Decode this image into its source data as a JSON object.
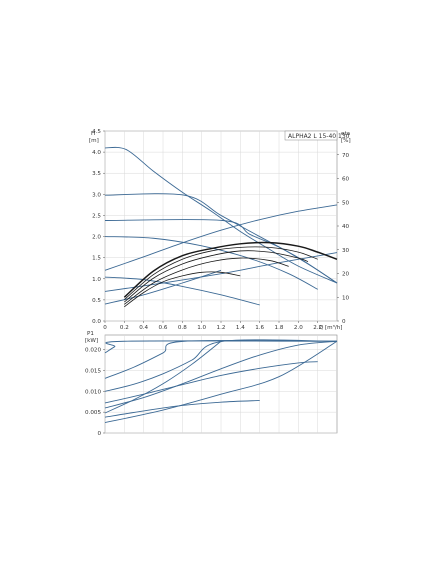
{
  "colors": {
    "curve": "#3d6a95",
    "eta_curve": "#1a1a1a",
    "axis": "#555555",
    "grid": "#d8d8d8",
    "frame": "#888888"
  },
  "legend": "ALPHA2 L 15-40 130",
  "chart_data": [
    {
      "type": "line",
      "title": "",
      "ylabel": "H",
      "yunit": "[m]",
      "y2label": "eta",
      "y2unit": "[%]",
      "xlabel": "Q",
      "xunit": "[m³/h]",
      "xlim": [
        0,
        2.4
      ],
      "ylim": [
        0,
        4.5
      ],
      "y2lim": [
        0,
        80
      ],
      "grid": true,
      "x_ticks": [
        "0",
        "0.2",
        "0.4",
        "0.6",
        "0.8",
        "1.0",
        "1.2",
        "1.4",
        "1.6",
        "1.8",
        "2.0",
        "2.2"
      ],
      "x_tick_values": [
        0,
        0.2,
        0.4,
        0.6,
        0.8,
        1.0,
        1.2,
        1.4,
        1.6,
        1.8,
        2.0,
        2.2
      ],
      "y_ticks": [
        "0.0",
        "0.5",
        "1.0",
        "1.5",
        "2.0",
        "2.5",
        "3.0",
        "3.5",
        "4.0",
        "4.5"
      ],
      "y_tick_values": [
        0,
        0.5,
        1.0,
        1.5,
        2.0,
        2.5,
        3.0,
        3.5,
        4.0,
        4.5
      ],
      "y2_ticks": [
        "0",
        "10",
        "20",
        "30",
        "40",
        "50",
        "60",
        "70"
      ],
      "y2_tick_values": [
        0,
        10,
        20,
        30,
        40,
        50,
        60,
        70
      ],
      "series": [
        {
          "axis": "y",
          "x": [
            0,
            0.22,
            0.5,
            0.8,
            1.1,
            1.4,
            1.7,
            2.0,
            2.4
          ],
          "y": [
            4.1,
            4.06,
            3.55,
            3.05,
            2.6,
            2.12,
            1.7,
            1.3,
            0.9
          ]
        },
        {
          "axis": "y",
          "x": [
            0,
            0.82,
            1.2,
            1.6,
            2.0,
            2.4
          ],
          "y": [
            2.98,
            2.98,
            2.5,
            2.0,
            1.5,
            0.9
          ]
        },
        {
          "axis": "y",
          "x": [
            0,
            1.22,
            1.5,
            1.8,
            2.1,
            2.4
          ],
          "y": [
            2.38,
            2.38,
            2.05,
            1.75,
            1.35,
            0.9
          ]
        },
        {
          "axis": "y",
          "x": [
            0,
            0.5,
            1.0,
            1.5,
            1.9,
            2.2
          ],
          "y": [
            2.0,
            1.96,
            1.78,
            1.48,
            1.12,
            0.75
          ]
        },
        {
          "axis": "y",
          "x": [
            0,
            0.4,
            0.8,
            1.2,
            1.6
          ],
          "y": [
            1.04,
            0.98,
            0.82,
            0.62,
            0.38
          ]
        },
        {
          "axis": "y",
          "x": [
            0,
            0.4,
            0.8,
            1.2,
            1.6,
            2.0,
            2.4
          ],
          "y": [
            1.2,
            1.52,
            1.85,
            2.15,
            2.4,
            2.6,
            2.75
          ]
        },
        {
          "axis": "y",
          "x": [
            0,
            0.6,
            1.2,
            1.8,
            2.4
          ],
          "y": [
            0.7,
            0.9,
            1.12,
            1.38,
            1.62
          ]
        },
        {
          "axis": "y",
          "x": [
            0,
            0.4,
            0.8,
            1.2
          ],
          "y": [
            0.4,
            0.62,
            0.9,
            1.2
          ]
        },
        {
          "axis": "y2",
          "x": [
            0.2,
            0.5,
            0.8,
            1.1,
            1.4,
            1.7,
            2.0,
            2.2,
            2.4
          ],
          "y": [
            10,
            21,
            27.5,
            30.5,
            32.5,
            33,
            31.5,
            29,
            26
          ]
        },
        {
          "axis": "y2",
          "x": [
            0.2,
            0.5,
            0.8,
            1.1,
            1.4,
            1.7,
            2.0,
            2.2
          ],
          "y": [
            9,
            19.5,
            26,
            29.5,
            31,
            31,
            29,
            26
          ]
        },
        {
          "axis": "y2",
          "x": [
            0.2,
            0.5,
            0.8,
            1.1,
            1.4,
            1.7,
            2.0,
            2.1
          ],
          "y": [
            8,
            18,
            24,
            27.5,
            29.5,
            29,
            26.5,
            25
          ]
        },
        {
          "axis": "y2",
          "x": [
            0.2,
            0.5,
            0.8,
            1.1,
            1.4,
            1.7,
            1.9
          ],
          "y": [
            7,
            16,
            21.5,
            25,
            26.5,
            25.5,
            23
          ]
        },
        {
          "axis": "y2",
          "x": [
            0.2,
            0.4,
            0.6,
            0.8,
            1.0,
            1.2,
            1.4
          ],
          "y": [
            6,
            12,
            16.5,
            19,
            20.5,
            20.5,
            19
          ]
        }
      ]
    },
    {
      "type": "line",
      "title": "",
      "ylabel": "P1",
      "yunit": "[kW]",
      "xlim": [
        0,
        2.4
      ],
      "ylim": [
        0,
        0.0235
      ],
      "grid": true,
      "y_ticks": [
        "0",
        "0.005",
        "0.010",
        "0.015",
        "0.020"
      ],
      "y_tick_values": [
        0,
        0.005,
        0.01,
        0.015,
        0.02
      ],
      "series": [
        {
          "x": [
            0,
            0.1,
            0.2,
            2.4
          ],
          "y": [
            0.0192,
            0.0207,
            0.022,
            0.022
          ]
        },
        {
          "x": [
            0,
            0.3,
            0.6,
            0.82,
            2.4
          ],
          "y": [
            0.0131,
            0.0158,
            0.0192,
            0.022,
            0.022
          ]
        },
        {
          "x": [
            0,
            0.3,
            0.6,
            0.9,
            1.22,
            2.4
          ],
          "y": [
            0.01,
            0.0117,
            0.0142,
            0.0175,
            0.022,
            0.022
          ]
        },
        {
          "x": [
            0,
            0.4,
            0.8,
            1.2,
            1.6,
            2.0,
            2.2
          ],
          "y": [
            0.0072,
            0.0093,
            0.0116,
            0.0138,
            0.0155,
            0.0168,
            0.0171
          ]
        },
        {
          "x": [
            0,
            0.4,
            0.8,
            1.2,
            1.6
          ],
          "y": [
            0.0038,
            0.0053,
            0.0066,
            0.0074,
            0.0078
          ]
        },
        {
          "x": [
            0,
            0.4,
            0.8,
            1.2,
            1.6,
            2.0,
            2.4
          ],
          "y": [
            0.006,
            0.0085,
            0.0118,
            0.0154,
            0.0187,
            0.0211,
            0.022
          ]
        },
        {
          "x": [
            0,
            0.6,
            1.2,
            1.8,
            2.4
          ],
          "y": [
            0.0025,
            0.0055,
            0.0093,
            0.0135,
            0.022
          ]
        },
        {
          "x": [
            0,
            0.3,
            0.6,
            0.9,
            1.2
          ],
          "y": [
            0.0048,
            0.008,
            0.0118,
            0.0165,
            0.022
          ]
        }
      ]
    }
  ]
}
